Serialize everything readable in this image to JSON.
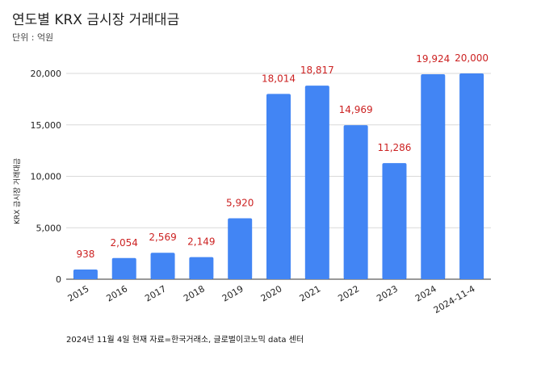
{
  "title": "연도별 KRX 금시장 거래대금",
  "subtitle": "단위 : 억원",
  "footnote": "2024년 11월 4일 현재   자료=한국거래소, 글로벌이코노믹 data 센터",
  "colors": {
    "bar": "#4285f4",
    "data_label": "#cc2222",
    "grid": "#d9d9d9"
  },
  "chart_data": {
    "type": "bar",
    "title": "연도별 KRX 금시장 거래대금",
    "subtitle": "단위 : 억원",
    "xlabel": "",
    "ylabel": "KRX 금시장 거래대금",
    "categories": [
      "2015",
      "2016",
      "2017",
      "2018",
      "2019",
      "2020",
      "2021",
      "2022",
      "2023",
      "2024",
      "2024-11-4"
    ],
    "values": [
      938,
      2054,
      2569,
      2149,
      5920,
      18014,
      18817,
      14969,
      11286,
      19924,
      20000
    ],
    "data_labels": [
      "938",
      "2,054",
      "2,569",
      "2,149",
      "5,920",
      "18,014",
      "18,817",
      "14,969",
      "11,286",
      "19,924",
      "20,000"
    ],
    "yticks": [
      0,
      5000,
      10000,
      15000,
      20000
    ],
    "ytick_labels": [
      "0",
      "5,000",
      "10,000",
      "15,000",
      "20,000"
    ],
    "ylim": [
      0,
      20000
    ],
    "grid": true,
    "legend": "none"
  }
}
